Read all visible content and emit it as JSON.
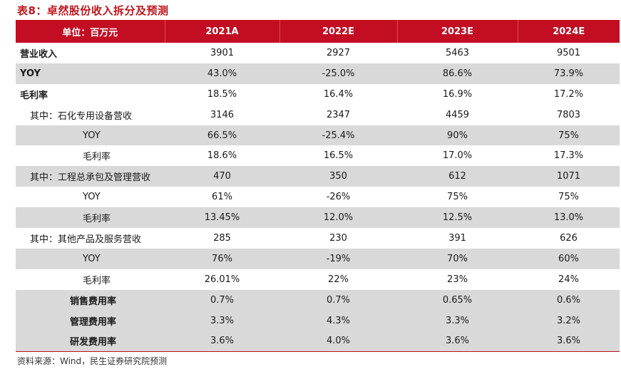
{
  "title": "表8：卓然股份收入拆分及预测",
  "header": [
    "单位：百万元",
    "2021A",
    "2022E",
    "2023E",
    "2024E"
  ],
  "rows": [
    {
      "label": "营业收入",
      "values": [
        "3901",
        "2927",
        "5463",
        "9501"
      ]
    },
    {
      "label": "YOY",
      "values": [
        "43.0%",
        "-25.0%",
        "86.6%",
        "73.9%"
      ]
    },
    {
      "label": "毛利率",
      "values": [
        "18.5%",
        "16.4%",
        "16.9%",
        "17.2%"
      ]
    },
    {
      "label": "其中：石化专用设备营收",
      "values": [
        "3146",
        "2347",
        "4459",
        "7803"
      ]
    },
    {
      "label": "YOY",
      "values": [
        "66.5%",
        "-25.4%",
        "90%",
        "75%"
      ]
    },
    {
      "label": "毛利率",
      "values": [
        "18.6%",
        "16.5%",
        "17.0%",
        "17.3%"
      ]
    },
    {
      "label": "其中：工程总承包及管理营收",
      "values": [
        "470",
        "350",
        "612",
        "1071"
      ]
    },
    {
      "label": "YOY",
      "values": [
        "61%",
        "-26%",
        "75%",
        "75%"
      ]
    },
    {
      "label": "毛利率",
      "values": [
        "13.45%",
        "12.0%",
        "12.5%",
        "13.0%"
      ]
    },
    {
      "label": "其中：其他产品及服务营收",
      "values": [
        "285",
        "230",
        "391",
        "626"
      ]
    },
    {
      "label": "YOY",
      "values": [
        "76%",
        "-19%",
        "70%",
        "60%"
      ]
    },
    {
      "label": "毛利率",
      "values": [
        "26.01%",
        "22%",
        "23%",
        "24%"
      ]
    },
    {
      "label": "销售费用率",
      "values": [
        "0.7%",
        "0.7%",
        "0.65%",
        "0.6%"
      ]
    },
    {
      "label": "管理费用率",
      "values": [
        "3.3%",
        "4.3%",
        "3.3%",
        "3.2%"
      ]
    },
    {
      "label": "研发费用率",
      "values": [
        "3.6%",
        "4.0%",
        "3.6%",
        "3.6%"
      ]
    }
  ],
  "source": "资料来源：Wind，民生证券研究院预测",
  "colors": {
    "header_bg": "#c30d23",
    "title": "#c0141c",
    "shade": "#d9d9d9"
  }
}
